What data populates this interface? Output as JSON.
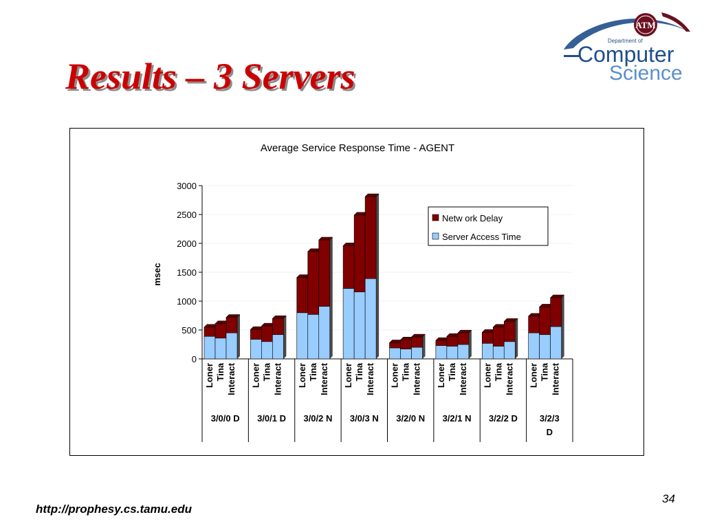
{
  "slide": {
    "title": "Results – 3 Servers",
    "footer_url": "http://prophesy.cs.tamu.edu",
    "page_number": "34"
  },
  "logo": {
    "line1": "Department of",
    "line2": "Computer",
    "line3": "Science",
    "seal": "ATM",
    "colors": {
      "maroon": "#6b1020",
      "blue": "#1f4e8c",
      "light_blue": "#5b8fc9"
    }
  },
  "chart_data": {
    "type": "bar",
    "stacked": true,
    "title": "Average Service Response Time - AGENT",
    "xlabel": "",
    "ylabel": "msec",
    "ylim": [
      0,
      3000
    ],
    "yticks": [
      0,
      500,
      1000,
      1500,
      2000,
      2500,
      3000
    ],
    "legend_position": "top-right",
    "grid": false,
    "groups": [
      {
        "name": "3/0/0 D",
        "categories": [
          "Loner",
          "Tina",
          "Interact"
        ]
      },
      {
        "name": "3/0/1 D",
        "categories": [
          "Loner",
          "Tina",
          "Interact"
        ]
      },
      {
        "name": "3/0/2 N",
        "categories": [
          "Loner",
          "Tina",
          "Interact"
        ]
      },
      {
        "name": "3/0/3 N",
        "categories": [
          "Loner",
          "Tina",
          "Interact"
        ]
      },
      {
        "name": "3/2/0 N",
        "categories": [
          "Loner",
          "Tina",
          "Interact"
        ]
      },
      {
        "name": "3/2/1 N",
        "categories": [
          "Loner",
          "Tina",
          "Interact"
        ]
      },
      {
        "name": "3/2/2 D",
        "categories": [
          "Loner",
          "Tina",
          "Interact"
        ]
      },
      {
        "name": "3/2/3 D",
        "categories": [
          "Loner",
          "Tina",
          "Interact"
        ]
      }
    ],
    "series": [
      {
        "name": "Server Access Time",
        "color": "#99ccff",
        "values": [
          390,
          360,
          450,
          340,
          300,
          420,
          800,
          770,
          910,
          1220,
          1160,
          1390,
          190,
          170,
          200,
          230,
          220,
          250,
          270,
          220,
          300,
          450,
          420,
          560
        ]
      },
      {
        "name": "Netw ork Delay",
        "color": "#800000",
        "values": [
          160,
          250,
          270,
          170,
          270,
          280,
          610,
          1090,
          1150,
          740,
          1330,
          1420,
          90,
          160,
          180,
          90,
          170,
          200,
          190,
          330,
          350,
          290,
          480,
          500
        ]
      }
    ]
  }
}
